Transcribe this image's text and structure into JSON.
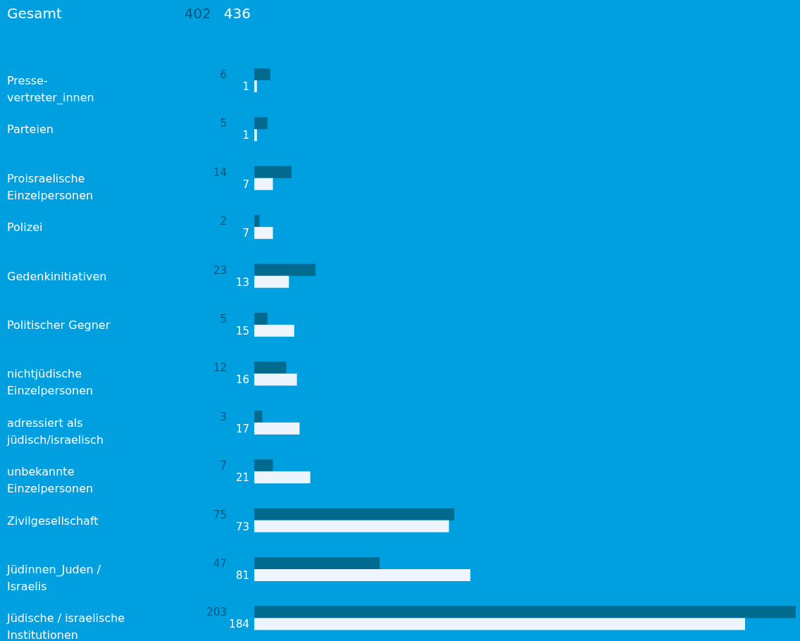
{
  "chart_data": {
    "type": "bar",
    "orientation": "horizontal",
    "data_labels": true,
    "categories": [
      "Presse-\nvertreter_innen",
      "Parteien",
      "Proisraelische\nEinzelpersonen",
      "Polizei",
      "Gedenkinitiativen",
      "Politischer Gegner",
      "nichtjüdische\nEinzelpersonen",
      "adressiert als\njüdisch/israelisch",
      "unbekannte\nEinzelpersonen",
      "Zivilgesellschaft",
      "Jüdinnen_Juden /\nIsraelis",
      "Jüdische / israelische\nInstitutionen"
    ],
    "series": [
      {
        "color": "#006a8f",
        "values": [
          6,
          5,
          14,
          2,
          23,
          5,
          12,
          3,
          7,
          75,
          47,
          203
        ]
      },
      {
        "color": "#eef4fb",
        "values": [
          1,
          1,
          7,
          7,
          13,
          15,
          16,
          17,
          21,
          73,
          81,
          184
        ]
      }
    ],
    "annotations": [
      "Gesamt",
      "402",
      "436"
    ]
  }
}
